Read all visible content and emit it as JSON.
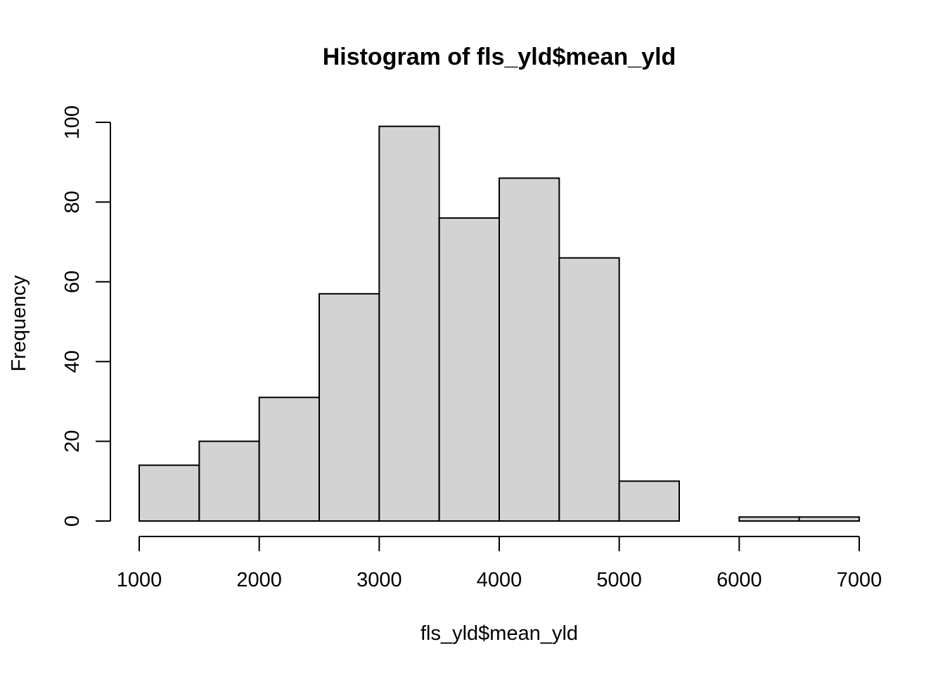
{
  "chart_data": {
    "type": "bar",
    "title": "Histogram of fls_yld$mean_yld",
    "xlabel": "fls_yld$mean_yld",
    "ylabel": "Frequency",
    "bins": [
      {
        "start": 1000,
        "end": 1500,
        "count": 14
      },
      {
        "start": 1500,
        "end": 2000,
        "count": 20
      },
      {
        "start": 2000,
        "end": 2500,
        "count": 31
      },
      {
        "start": 2500,
        "end": 3000,
        "count": 57
      },
      {
        "start": 3000,
        "end": 3500,
        "count": 99
      },
      {
        "start": 3500,
        "end": 4000,
        "count": 76
      },
      {
        "start": 4000,
        "end": 4500,
        "count": 86
      },
      {
        "start": 4500,
        "end": 5000,
        "count": 66
      },
      {
        "start": 5000,
        "end": 5500,
        "count": 10
      },
      {
        "start": 5500,
        "end": 6000,
        "count": 0
      },
      {
        "start": 6000,
        "end": 6500,
        "count": 1
      },
      {
        "start": 6500,
        "end": 7000,
        "count": 1
      }
    ],
    "xlim": [
      1000,
      7000
    ],
    "ylim": [
      0,
      100
    ],
    "xticks": [
      "1000",
      "2000",
      "3000",
      "4000",
      "5000",
      "6000",
      "7000"
    ],
    "yticks": [
      "0",
      "20",
      "40",
      "60",
      "80",
      "100"
    ],
    "bar_color": "#d3d3d3",
    "grid": false
  }
}
